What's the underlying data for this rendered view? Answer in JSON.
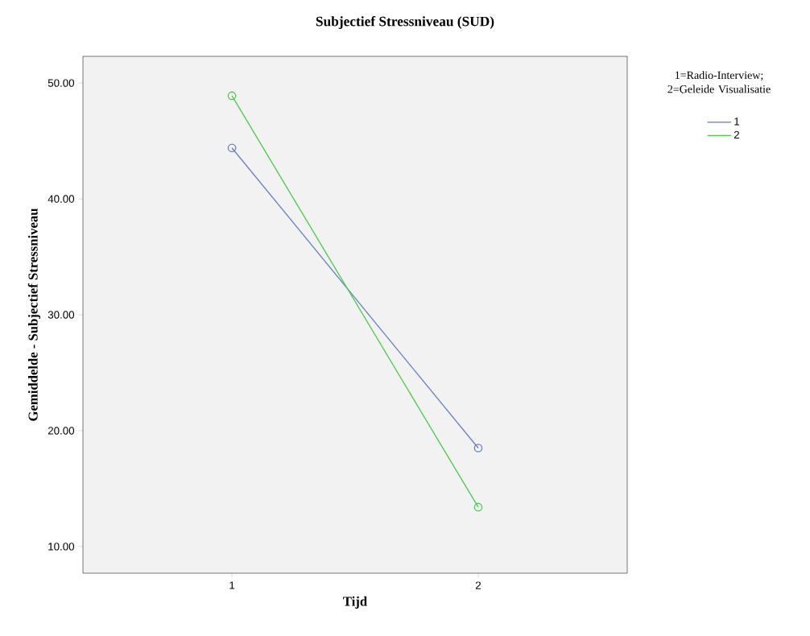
{
  "chart_data": {
    "type": "line",
    "title": "Subjectief Stressniveau (SUD)",
    "xlabel": "Tijd",
    "ylabel": "Gemiddelde - Subjectief Stressniveau",
    "legend_title": "1=Radio-Interview; 2=Geleide Visualisatie",
    "categories": [
      "1",
      "2"
    ],
    "series": [
      {
        "name": "1",
        "color": "#6b7fc6",
        "values": [
          44.4,
          18.5
        ]
      },
      {
        "name": "2",
        "color": "#4ccc4c",
        "values": [
          48.9,
          13.4
        ]
      }
    ],
    "ylim": [
      7.7,
      52.3
    ],
    "yticks": [
      {
        "value": 10,
        "label": "10.00"
      },
      {
        "value": 20,
        "label": "20.00"
      },
      {
        "value": 30,
        "label": "30.00"
      },
      {
        "value": 40,
        "label": "40.00"
      },
      {
        "value": 50,
        "label": "50.00"
      }
    ],
    "marker": "circle",
    "line_style": "solid",
    "legend": "right",
    "grid": false
  }
}
